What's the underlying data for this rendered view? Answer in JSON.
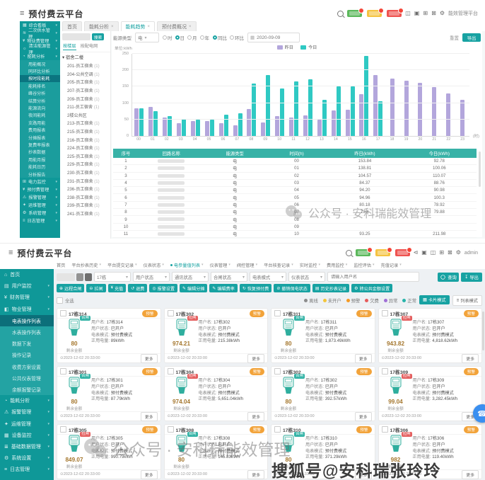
{
  "watermarks": {
    "wechat_text": "公众号 · 安科瑞能效管理",
    "souhu_text": "搜狐号@安科瑞张玲玲"
  },
  "chart_data": {
    "type": "bar",
    "unit_label": "单位:kWh",
    "x_suffix": "(时)",
    "categories": [
      "00",
      "01",
      "02",
      "03",
      "04",
      "05",
      "06",
      "07",
      "08",
      "09",
      "10",
      "11",
      "12",
      "13",
      "14",
      "15",
      "16",
      "17",
      "18",
      "19",
      "20",
      "21",
      "22",
      "23"
    ],
    "series": [
      {
        "name": "昨日",
        "color": "#b3a6dc",
        "values": [
          85,
          88,
          55,
          38,
          45,
          45,
          38,
          32,
          82,
          42,
          60,
          55,
          62,
          50,
          78,
          80,
          128,
          185,
          175,
          168,
          162,
          148,
          130,
          110
        ]
      },
      {
        "name": "今日",
        "color": "#2fc9c3",
        "values": [
          85,
          75,
          60,
          52,
          50,
          50,
          65,
          68,
          160,
          185,
          145,
          165,
          172,
          110,
          150,
          150,
          243,
          105,
          null,
          null,
          null,
          null,
          null,
          null
        ]
      }
    ],
    "ylim": [
      0,
      250
    ],
    "yticks": [
      0,
      50,
      100,
      150,
      200,
      250
    ],
    "legend_position": "top",
    "grid": true
  },
  "top": {
    "title": "预付费云平台",
    "header_right_text": "能效管理平台",
    "header_badges": [
      {
        "name": "normal-alarm-badge",
        "color": "#5cb85c"
      },
      {
        "name": "warning-alarm-badge",
        "color": "#f5c342"
      },
      {
        "name": "critical-alarm-badge",
        "color": "#ef5350"
      }
    ],
    "tabs": [
      {
        "label": "首页",
        "closable": false,
        "active": false
      },
      {
        "label": "能耗分析",
        "closable": true,
        "active": false
      },
      {
        "label": "能耗趋势",
        "closable": true,
        "active": true
      },
      {
        "label": "预付费概况",
        "closable": true,
        "active": false
      }
    ],
    "sidebar": {
      "groups_top": [
        {
          "icon": "▦",
          "label": "综合看板"
        },
        {
          "icon": "≋",
          "label": "二次供水管理"
        },
        {
          "icon": "¥",
          "label": "物业费管理"
        },
        {
          "icon": "☼",
          "label": "清洁能源管理"
        },
        {
          "icon": "◔",
          "label": "能耗分析"
        }
      ],
      "submenu": [
        "用能概况",
        "同环比分析",
        "按时段能耗",
        "能耗排名",
        "峰谷分析",
        "结算分析",
        "能源流向",
        "夜间能耗",
        "支路用能",
        "费用报表",
        "分摊报表",
        "复费率报表",
        "抄表数据",
        "用能月报",
        "能耗日历",
        "分析报告"
      ],
      "submenu_active": "按时段能耗",
      "groups_bottom": [
        {
          "icon": "⊞",
          "label": "电力监控"
        },
        {
          "icon": "¥",
          "label": "预付费管理"
        },
        {
          "icon": "⚠",
          "label": "报警管理"
        },
        {
          "icon": "✦",
          "label": "运维管理"
        },
        {
          "icon": "⚙",
          "label": "系统管理"
        },
        {
          "icon": "≡",
          "label": "日志管理"
        }
      ]
    },
    "tree": {
      "search_label": "搜索",
      "tabs": [
        {
          "label": "按楼层",
          "active": true
        },
        {
          "label": "按配电网",
          "active": false
        }
      ],
      "root": "宿舍二楼",
      "items": [
        {
          "label": "201-员工宿舍",
          "count": "(1)"
        },
        {
          "label": "204-公共空调",
          "count": "(1)"
        },
        {
          "label": "205-员工宿舍",
          "count": "(1)"
        },
        {
          "label": "207-员工宿舍",
          "count": "(1)"
        },
        {
          "label": "209-员工宿舍",
          "count": "(1)"
        },
        {
          "label": "211-员工宿舍",
          "count": "(1)"
        },
        {
          "label": "2楼公共区",
          "count": ""
        },
        {
          "label": "213-员工宿舍",
          "count": "(1)"
        },
        {
          "label": "215-员工宿舍",
          "count": "(1)"
        },
        {
          "label": "216-员工宿舍",
          "count": "(1)"
        },
        {
          "label": "224-员工宿舍",
          "count": "(1)"
        },
        {
          "label": "225-员工宿舍",
          "count": "(1)"
        },
        {
          "label": "229-员工宿舍",
          "count": "(1)"
        },
        {
          "label": "230-员工宿舍",
          "count": "(1)"
        },
        {
          "label": "231-员工宿舍",
          "count": "(1)"
        },
        {
          "label": "236-员工宿舍",
          "count": "(1)"
        },
        {
          "label": "238-员工宿舍",
          "count": "(1)"
        },
        {
          "label": "239-员工宿舍",
          "count": "(1)"
        },
        {
          "label": "241-员工宿舍",
          "count": "(1)"
        }
      ]
    },
    "filters": {
      "type_label": "能源类型",
      "type_value": "电",
      "granularity": [
        "时",
        "日",
        "月",
        "年"
      ],
      "granularity_selected": "日",
      "compare": [
        "同比",
        "环比"
      ],
      "compare_selected": "同比",
      "date": "2020-09-09",
      "reset_label": "重置",
      "export_label": "导出"
    },
    "table": {
      "headers": [
        "序号",
        "回路名称",
        "能源类型",
        "时间(h)",
        "昨日(kWh)",
        "今日(kWh)"
      ],
      "rows": [
        [
          "1",
          "电",
          "00",
          "153.84",
          "92.78"
        ],
        [
          "2",
          "电",
          "01",
          "138.81",
          "100.06"
        ],
        [
          "3",
          "电",
          "02",
          "104.57",
          "110.07"
        ],
        [
          "4",
          "电",
          "03",
          "84.37",
          "88.76"
        ],
        [
          "5",
          "电",
          "04",
          "94.20",
          "90.98"
        ],
        [
          "6",
          "电",
          "05",
          "94.96",
          "100.3"
        ],
        [
          "7",
          "电",
          "06",
          "80.18",
          "78.92"
        ],
        [
          "8",
          "电",
          "07",
          "79.6",
          "79.88"
        ],
        [
          "9",
          "电",
          "08",
          "",
          ""
        ],
        [
          "10",
          "电",
          "09",
          "",
          ""
        ],
        [
          "11",
          "电",
          "10",
          "93.25",
          "211.98"
        ]
      ]
    }
  },
  "bottom": {
    "title": "预付费云平台",
    "admin_label": "admin",
    "header_badges": [
      {
        "name": "normal-alarm-badge",
        "color": "#5cb85c"
      },
      {
        "name": "warning-alarm-badge",
        "color": "#f5c342"
      },
      {
        "name": "critical-alarm-badge",
        "color": "#ef5350"
      }
    ],
    "tabs": [
      {
        "label": "首页",
        "caret": false,
        "active": false
      },
      {
        "label": "平台抄表历史",
        "caret": true,
        "active": false
      },
      {
        "label": "平台提交记录",
        "caret": true,
        "active": false
      },
      {
        "label": "仪表状态",
        "caret": true,
        "active": false
      },
      {
        "label": "电参量值列表",
        "caret": true,
        "active": true
      },
      {
        "label": "仪表管理",
        "caret": true,
        "active": false
      },
      {
        "label": "阀控管理",
        "caret": true,
        "active": false
      },
      {
        "label": "平台核查记录",
        "caret": true,
        "active": false
      },
      {
        "label": "实时监控",
        "caret": true,
        "active": false
      },
      {
        "label": "费用监控",
        "caret": true,
        "active": false
      },
      {
        "label": "监控评估",
        "caret": true,
        "active": false
      },
      {
        "label": "充值记录",
        "caret": true,
        "active": false
      }
    ],
    "sidebar": [
      {
        "icon": "⌂",
        "label": "首页",
        "caret": false
      },
      {
        "icon": "▤",
        "label": "用户监控",
        "caret": true
      },
      {
        "icon": "¥",
        "label": "财务管理",
        "caret": true
      },
      {
        "icon": "◧",
        "label": "物业管理",
        "caret": true,
        "open": true,
        "children": [
          {
            "label": "电表操作列表",
            "active": true
          },
          {
            "label": "水表操作列表",
            "active": false
          },
          {
            "label": "数据下发",
            "active": false
          },
          {
            "label": "操作记录",
            "active": false
          },
          {
            "label": "收费方案设置",
            "active": false
          },
          {
            "label": "公共仪表管理",
            "active": false
          },
          {
            "label": "余额报警记录",
            "active": false
          }
        ]
      },
      {
        "icon": "◔",
        "label": "能耗分析",
        "caret": true
      },
      {
        "icon": "⚠",
        "label": "报警管理",
        "caret": true
      },
      {
        "icon": "✦",
        "label": "运维管理",
        "caret": true
      },
      {
        "icon": "▦",
        "label": "设备监控",
        "caret": true
      },
      {
        "icon": "≣",
        "label": "基础数据管理",
        "caret": true
      },
      {
        "icon": "⚙",
        "label": "系统设置",
        "caret": true
      },
      {
        "icon": "≡",
        "label": "日志管理",
        "caret": true
      }
    ],
    "filters": {
      "selects": [
        "17栋",
        "用户状态",
        "通讯状态",
        "合闸状态",
        "电表模式",
        "仪表状态"
      ],
      "input_placeholder": "请输入用户名",
      "search_label": "查询",
      "export_label": "导出"
    },
    "actions": [
      {
        "icon": "⊕",
        "label": "远程合闸"
      },
      {
        "icon": "⊖",
        "label": "拉闸"
      },
      {
        "icon": "¥",
        "label": "充值"
      },
      {
        "icon": "↺",
        "label": "退费"
      },
      {
        "icon": "◎",
        "label": "报警设置"
      },
      {
        "icon": "✎",
        "label": "编辑分摊"
      },
      {
        "icon": "✎",
        "label": "编辑费率"
      },
      {
        "icon": "↻",
        "label": "恢复预付费"
      },
      {
        "icon": "⊘",
        "label": "撤销保电状态"
      },
      {
        "icon": "▤",
        "label": "历史抄表记录"
      },
      {
        "icon": "⚙",
        "label": "转公共金额设置"
      }
    ],
    "select_all_label": "全选",
    "status_legend": [
      {
        "label": "离线",
        "color": "#8c8c8c"
      },
      {
        "label": "未开户",
        "color": "#f3c53a"
      },
      {
        "label": "预警",
        "color": "#f59a23"
      },
      {
        "label": "欠费",
        "color": "#e65a5a"
      },
      {
        "label": "异常",
        "color": "#a06fd6"
      },
      {
        "label": "正常",
        "color": "#27b3a9"
      }
    ],
    "view_modes": [
      {
        "label": "卡片模式",
        "icon": "▦",
        "active": true
      },
      {
        "label": "列表模式",
        "icon": "≡",
        "active": false
      }
    ],
    "card_labels": {
      "user": "用户名:",
      "status": "用户状态:",
      "mode": "电表模式:",
      "energy": "正用电量:",
      "amount": "剩余金额",
      "more": "更多",
      "warn": "预警"
    },
    "card_shared": {
      "status": "已开户",
      "mode": "预付费模式",
      "time": "2023-12-02 20:33:00"
    },
    "cards": [
      {
        "title": "17栋314",
        "relay": "合闸",
        "relay_state": "on",
        "amount": "80",
        "energy": "89kWh"
      },
      {
        "title": "17栋302",
        "relay": "拉闸",
        "relay_state": "off",
        "amount": "974.21",
        "energy": "215.38kWh"
      },
      {
        "title": "17栋311",
        "relay": "合闸",
        "relay_state": "on",
        "amount": "80",
        "energy": "1,873.49kWh"
      },
      {
        "title": "17栋307",
        "relay": "拉闸",
        "relay_state": "off",
        "amount": "943.82",
        "energy": "4,818.62kWh"
      },
      {
        "title": "17栋301",
        "relay": "合闸",
        "relay_state": "on",
        "amount": "80",
        "energy": "87.79kWh"
      },
      {
        "title": "17栋304",
        "relay": "拉闸",
        "relay_state": "off",
        "amount": "974.04",
        "energy": "5,651.04kWh"
      },
      {
        "title": "17栋302",
        "relay": "合闸",
        "relay_state": "on",
        "amount": "80",
        "energy": "392.57kWh"
      },
      {
        "title": "17栋309",
        "relay": "拉闸",
        "relay_state": "off",
        "amount": "99.04",
        "energy": "3,282.45kWh"
      },
      {
        "title": "17栋305",
        "relay": "拉闸",
        "relay_state": "off",
        "amount": "849.07",
        "energy": "990.79kWh"
      },
      {
        "title": "17栋308",
        "relay": "合闸",
        "relay_state": "on",
        "amount": "80",
        "energy": "145.83kWh"
      },
      {
        "title": "17栋310",
        "relay": "合闸",
        "relay_state": "on",
        "amount": "80",
        "energy": "371.29kWh"
      },
      {
        "title": "17栋306",
        "relay": "拉闸",
        "relay_state": "off",
        "amount": "982",
        "energy": "119.40kWh"
      }
    ]
  }
}
